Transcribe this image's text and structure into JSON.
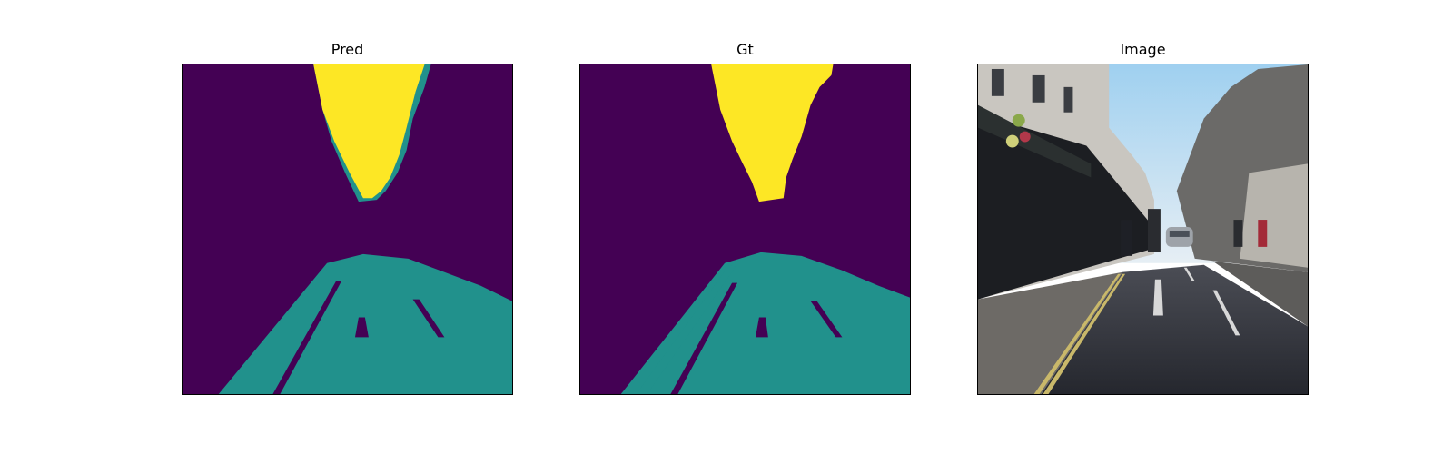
{
  "panels": [
    {
      "title": "Pred"
    },
    {
      "title": "Gt"
    },
    {
      "title": "Image"
    }
  ],
  "colors": {
    "background_class": "#440154",
    "road_class": "#21918c",
    "sky_class": "#fde725",
    "sky_photo": "#bcd9ee",
    "road_photo": "#2d2f38",
    "building_photo": "#4a4a50"
  }
}
